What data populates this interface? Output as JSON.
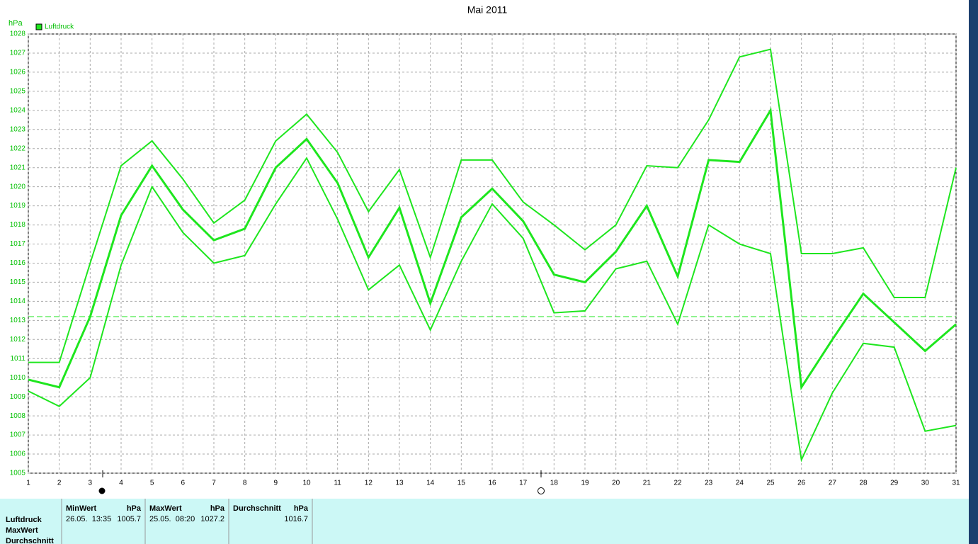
{
  "chart_data": {
    "type": "line",
    "title": "Mai 2011",
    "y_label": "hPa",
    "x": [
      1,
      2,
      3,
      4,
      5,
      6,
      7,
      8,
      9,
      10,
      11,
      12,
      13,
      14,
      15,
      16,
      17,
      18,
      19,
      20,
      21,
      22,
      23,
      24,
      25,
      26,
      27,
      28,
      29,
      30,
      31
    ],
    "xlim": [
      1,
      31
    ],
    "xticks": [
      1,
      2,
      3,
      4,
      5,
      6,
      7,
      8,
      9,
      10,
      11,
      12,
      13,
      14,
      15,
      16,
      17,
      18,
      19,
      20,
      21,
      22,
      23,
      24,
      25,
      26,
      27,
      28,
      29,
      30,
      31
    ],
    "ylim": [
      1005,
      1028
    ],
    "yticks": [
      1005,
      1006,
      1007,
      1008,
      1009,
      1010,
      1011,
      1012,
      1013,
      1014,
      1015,
      1016,
      1017,
      1018,
      1019,
      1020,
      1021,
      1022,
      1023,
      1024,
      1025,
      1026,
      1027,
      1028
    ],
    "grid": true,
    "reference_line": 1013.2,
    "series": [
      {
        "color": "#1ee61e",
        "width": 2,
        "values": [
          1010.8,
          1010.8,
          1016.0,
          1021.1,
          1022.4,
          1020.4,
          1018.1,
          1019.3,
          1022.4,
          1023.8,
          1021.8,
          1018.7,
          1020.9,
          1016.3,
          1021.4,
          1021.4,
          1019.2,
          1018.0,
          1016.7,
          1018.0,
          1021.1,
          1021.0,
          1023.5,
          1026.8,
          1027.2,
          1016.5,
          1016.5,
          1016.8,
          1014.2,
          1014.2,
          1021.0
        ]
      },
      {
        "name": "Luftdruck",
        "color": "#1ee61e",
        "width": 3,
        "values": [
          1009.9,
          1009.5,
          1013.2,
          1018.5,
          1021.1,
          1018.8,
          1017.2,
          1017.8,
          1021.0,
          1022.5,
          1020.2,
          1016.3,
          1018.9,
          1013.9,
          1018.4,
          1019.9,
          1018.2,
          1015.4,
          1015.0,
          1016.6,
          1019.0,
          1015.3,
          1021.4,
          1021.3,
          1024.0,
          1009.5,
          1012.0,
          1014.4,
          1012.9,
          1011.4,
          1012.8
        ]
      },
      {
        "color": "#1ee61e",
        "width": 2,
        "values": [
          1009.3,
          1008.5,
          1010.0,
          1015.9,
          1020.0,
          1017.6,
          1016.0,
          1016.4,
          1019.1,
          1021.5,
          1018.3,
          1014.6,
          1015.9,
          1012.5,
          1016.1,
          1019.1,
          1017.3,
          1013.4,
          1013.5,
          1015.7,
          1016.1,
          1012.8,
          1018.0,
          1017.0,
          1016.5,
          1005.7,
          1009.2,
          1011.8,
          1011.6,
          1007.2,
          1007.5
        ]
      }
    ]
  },
  "table": {
    "row_labels": [
      "Luftdruck",
      "MaxWert",
      "Durchschnitt"
    ],
    "columns": [
      {
        "header": "MinWert",
        "unit": "hPa",
        "date": "26.05.  13:35",
        "value": "1005.7"
      },
      {
        "header": "MaxWert",
        "unit": "hPa",
        "date": "25.05.  08:20",
        "value": "1027.2"
      },
      {
        "header": "Durchschnitt",
        "unit": "hPa",
        "value": "1016.7"
      }
    ]
  }
}
